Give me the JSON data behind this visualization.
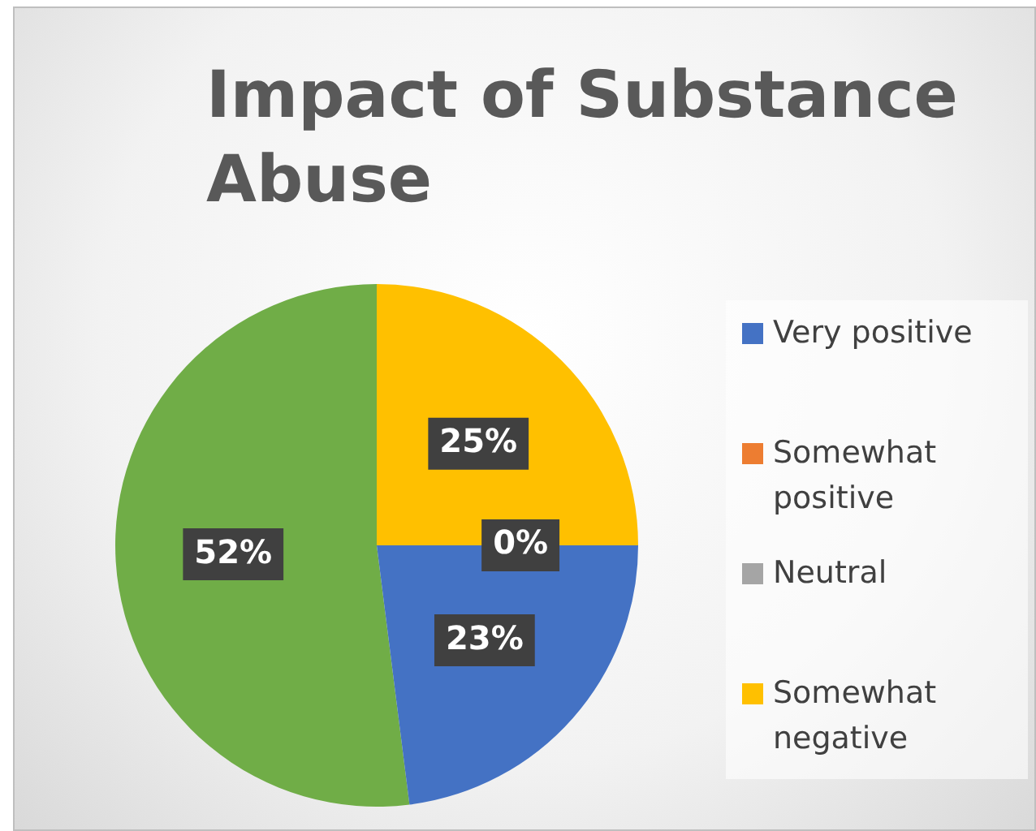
{
  "chart_data": {
    "type": "pie",
    "title": "Impact of Substance Abuse",
    "categories": [
      "Very positive",
      "Somewhat positive",
      "Neutral",
      "Somewhat negative",
      null
    ],
    "values": [
      23,
      0,
      0,
      25,
      52
    ],
    "colors": [
      "#4472c4",
      "#ed7d31",
      "#a5a5a5",
      "#ffc000",
      "#70ad47"
    ],
    "value_labels": [
      "23%",
      "0%",
      null,
      "25%",
      "52%"
    ],
    "legend": "right"
  }
}
